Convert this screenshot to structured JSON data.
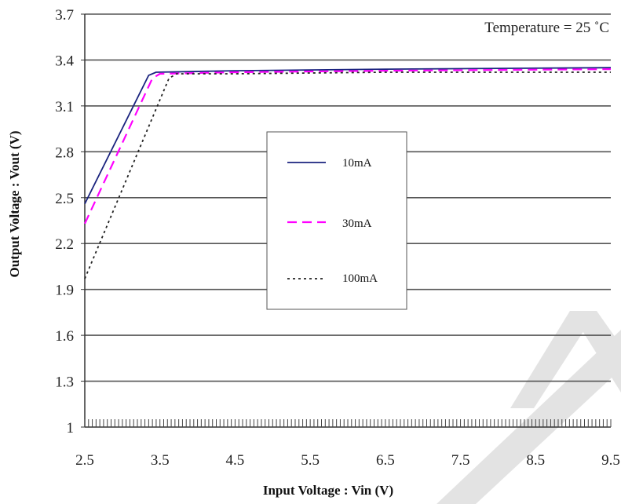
{
  "chart_data": {
    "type": "line",
    "title": "",
    "annotation": "Temperature = 25 ˚C",
    "xlabel": "Input  Voltage : Vin (V)",
    "ylabel": "Output Voltage : Vout (V)",
    "xlim": [
      2.5,
      9.5
    ],
    "ylim": [
      1.0,
      3.7
    ],
    "x_ticks": [
      "2.5",
      "3.5",
      "4.5",
      "5.5",
      "6.5",
      "7.5",
      "8.5",
      "9.5"
    ],
    "y_ticks": [
      "1",
      "1.3",
      "1.6",
      "1.9",
      "2.2",
      "2.5",
      "2.8",
      "3.1",
      "3.4",
      "3.7"
    ],
    "grid": "horizontal",
    "legend_position": "center",
    "series": [
      {
        "name": "10mA",
        "color": "#1a237e",
        "dash": "solid",
        "points": [
          [
            2.5,
            2.46
          ],
          [
            3.35,
            3.3
          ],
          [
            3.45,
            3.32
          ],
          [
            4.5,
            3.33
          ],
          [
            6.5,
            3.34
          ],
          [
            9.5,
            3.35
          ]
        ]
      },
      {
        "name": "30mA",
        "color": "#ff00ff",
        "dash": "dashed",
        "points": [
          [
            2.5,
            2.33
          ],
          [
            3.4,
            3.28
          ],
          [
            3.5,
            3.31
          ],
          [
            4.5,
            3.32
          ],
          [
            6.5,
            3.33
          ],
          [
            9.5,
            3.34
          ]
        ]
      },
      {
        "name": "100mA",
        "color": "#222222",
        "dash": "dotted",
        "points": [
          [
            2.5,
            1.97
          ],
          [
            3.62,
            3.28
          ],
          [
            3.72,
            3.31
          ],
          [
            4.5,
            3.31
          ],
          [
            6.5,
            3.32
          ],
          [
            9.5,
            3.32
          ]
        ]
      }
    ]
  },
  "colors": {
    "grid": "#555555",
    "axis": "#333333",
    "watermark": "#e3e3e3"
  }
}
